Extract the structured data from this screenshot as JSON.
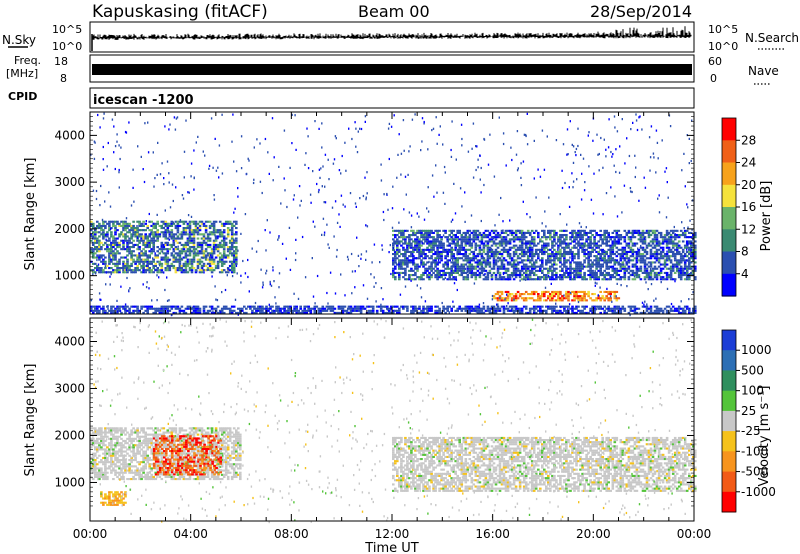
{
  "header": {
    "station": "Kapuskasing (fitACF)",
    "beam": "Beam 00",
    "date": "28/Sep/2014"
  },
  "status_panels": {
    "nsky_label": "N.Sky",
    "nsearch_label": "N.Search",
    "noise_ticks": [
      "10^5",
      "10^0"
    ],
    "freq_label_top": "Freq.",
    "freq_label_unit": "[MHz]",
    "freq_ticks": [
      "18",
      "8"
    ],
    "nave_ticks": [
      "60",
      "0"
    ],
    "nave_label": "Nave",
    "cpid_label": "CPID",
    "cpid_value": "icescan -1200"
  },
  "chart_data": [
    {
      "type": "heatmap",
      "name_in_image": "power",
      "xlabel": "",
      "ylabel": "Slant Range [km]",
      "xlim": [
        0,
        24
      ],
      "ylim": [
        180,
        4500
      ],
      "yticks": [
        1000,
        2000,
        3000,
        4000
      ],
      "colorbar": {
        "label": "Power [dB]",
        "ticks": [
          "4",
          "8",
          "12",
          "16",
          "20",
          "24",
          "28"
        ],
        "colors": [
          "#0000ff",
          "#2b4fb0",
          "#3a8a72",
          "#6ab36a",
          "#f5e23c",
          "#f7a21b",
          "#f06018",
          "#ff0000"
        ]
      },
      "regions": [
        {
          "x": [
            0,
            5.8
          ],
          "y": [
            1050,
            2150
          ],
          "level": "mixed_blue_green"
        },
        {
          "x": [
            12,
            24
          ],
          "y": [
            900,
            1950
          ],
          "level": "blue_green"
        },
        {
          "x": [
            16,
            21
          ],
          "y": [
            450,
            650
          ],
          "level": "orange_red"
        },
        {
          "x": [
            0,
            24
          ],
          "y": [
            180,
            350
          ],
          "level": "blue"
        }
      ]
    },
    {
      "type": "heatmap",
      "name_in_image": "velocity",
      "xlabel": "Time UT",
      "ylabel": "Slant Range [km]",
      "xlim": [
        0,
        24
      ],
      "ylim": [
        180,
        4500
      ],
      "xticks": [
        "00:00",
        "04:00",
        "08:00",
        "12:00",
        "16:00",
        "20:00",
        "00:00"
      ],
      "yticks": [
        1000,
        2000,
        3000,
        4000
      ],
      "colorbar": {
        "label": "Velocity [m s⁻¹]",
        "ticks": [
          "1000",
          "500",
          "100",
          "25",
          "-25",
          "-100",
          "-500",
          "-1000"
        ],
        "colors": [
          "#1b3dd6",
          "#2c6fb5",
          "#2f8f5e",
          "#54c43a",
          "#c8c8c8",
          "#f5c21b",
          "#f7941d",
          "#f25a16",
          "#ff0000"
        ]
      },
      "regions": [
        {
          "x": [
            0,
            6
          ],
          "y": [
            1050,
            2150
          ],
          "level": "grey"
        },
        {
          "x": [
            2.5,
            5.2
          ],
          "y": [
            1150,
            2000
          ],
          "level": "orange_red"
        },
        {
          "x": [
            12,
            24
          ],
          "y": [
            800,
            1950
          ],
          "level": "grey"
        },
        {
          "x": [
            0.4,
            1.4
          ],
          "y": [
            500,
            800
          ],
          "level": "yellow_orange"
        }
      ]
    }
  ]
}
